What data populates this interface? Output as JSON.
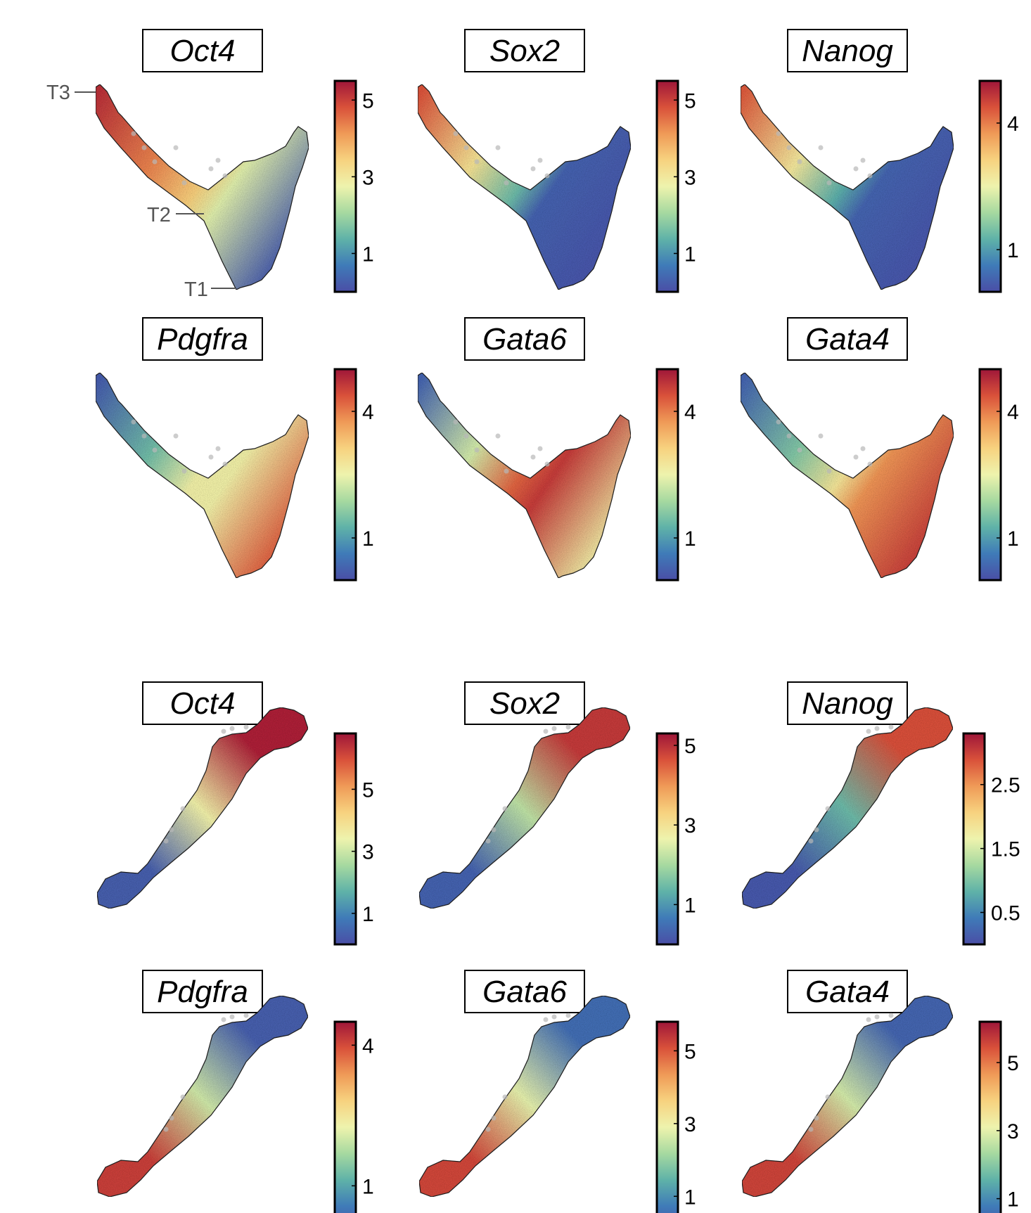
{
  "colorscale": [
    "#4a4ea6",
    "#3f7bb8",
    "#5fb2a8",
    "#a6d9a0",
    "#eef3ad",
    "#f7d27f",
    "#ef9a57",
    "#d9513a",
    "#9e1639"
  ],
  "chart_data": {
    "type": "scatter",
    "plot_kind": "feature-plot",
    "panels": [
      {
        "gene": "Oct4",
        "dataset": "trajectory-y",
        "ticks": [
          "5",
          "3",
          "1"
        ],
        "tick_values": [
          5,
          3,
          1
        ],
        "range": [
          0,
          5.5
        ],
        "expression_profile": {
          "branch": 5.2,
          "junction": 3.5,
          "left_arm": 2.6,
          "right_arm": 0.2
        }
      },
      {
        "gene": "Sox2",
        "dataset": "trajectory-y",
        "ticks": [
          "5",
          "3",
          "1"
        ],
        "tick_values": [
          5,
          3,
          1
        ],
        "range": [
          0,
          5.5
        ],
        "expression_profile": {
          "branch": 4.8,
          "junction": 1.5,
          "left_arm": 0.3,
          "right_arm": 0.1
        }
      },
      {
        "gene": "Nanog",
        "dataset": "trajectory-y",
        "ticks": [
          "4",
          "1"
        ],
        "tick_values": [
          4,
          1
        ],
        "range": [
          0,
          5
        ],
        "expression_profile": {
          "branch": 4.3,
          "junction": 1.2,
          "left_arm": 0.3,
          "right_arm": 0.1
        }
      },
      {
        "gene": "Pdgfra",
        "dataset": "trajectory-y",
        "ticks": [
          "4",
          "1"
        ],
        "tick_values": [
          4,
          1
        ],
        "range": [
          0,
          5
        ],
        "expression_profile": {
          "branch": 0.2,
          "junction": 2.6,
          "left_arm": 2.6,
          "right_arm": 4.3
        }
      },
      {
        "gene": "Gata6",
        "dataset": "trajectory-y",
        "ticks": [
          "4",
          "1"
        ],
        "tick_values": [
          4,
          1
        ],
        "range": [
          0,
          5
        ],
        "expression_profile": {
          "branch": 0.3,
          "junction": 4.2,
          "left_arm": 4.6,
          "right_arm": 2.6
        }
      },
      {
        "gene": "Gata4",
        "dataset": "trajectory-y",
        "ticks": [
          "4",
          "1"
        ],
        "tick_values": [
          4,
          1
        ],
        "range": [
          0,
          5
        ],
        "expression_profile": {
          "branch": 0.3,
          "junction": 2.8,
          "left_arm": 3.8,
          "right_arm": 4.6
        }
      },
      {
        "gene": "Oct4",
        "dataset": "trajectory-diagonal",
        "ticks": [
          "5",
          "3",
          "1"
        ],
        "tick_values": [
          5,
          3,
          1
        ],
        "range": [
          0,
          6.8
        ],
        "expression_profile": {
          "bottom_left": 0.3,
          "middle": 3.5,
          "top_right": 6.6
        }
      },
      {
        "gene": "Sox2",
        "dataset": "trajectory-diagonal",
        "ticks": [
          "5",
          "3",
          "1"
        ],
        "tick_values": [
          5,
          3,
          1
        ],
        "range": [
          0,
          5.3
        ],
        "expression_profile": {
          "bottom_left": 0.3,
          "middle": 2.2,
          "top_right": 4.9
        }
      },
      {
        "gene": "Nanog",
        "dataset": "trajectory-diagonal",
        "ticks": [
          "2.5",
          "1.5",
          "0.5"
        ],
        "tick_values": [
          2.5,
          1.5,
          0.5
        ],
        "range": [
          0,
          3.3
        ],
        "expression_profile": {
          "bottom_left": 0.1,
          "middle": 0.9,
          "top_right": 2.9
        }
      },
      {
        "gene": "Pdgfra",
        "dataset": "trajectory-diagonal",
        "ticks": [
          "4",
          "1"
        ],
        "tick_values": [
          4,
          1
        ],
        "range": [
          0,
          4.5
        ],
        "expression_profile": {
          "bottom_left": 4.1,
          "middle": 2.0,
          "top_right": 0.2
        }
      },
      {
        "gene": "Gata6",
        "dataset": "trajectory-diagonal",
        "ticks": [
          "5",
          "3",
          "1"
        ],
        "tick_values": [
          5,
          3,
          1
        ],
        "range": [
          0,
          5.8
        ],
        "expression_profile": {
          "bottom_left": 5.2,
          "middle": 2.8,
          "top_right": 0.5
        }
      },
      {
        "gene": "Gata4",
        "dataset": "trajectory-diagonal",
        "ticks": [
          "5",
          "3",
          "1"
        ],
        "tick_values": [
          5,
          3,
          1
        ],
        "range": [
          0,
          6.2
        ],
        "expression_profile": {
          "bottom_left": 5.6,
          "middle": 2.8,
          "top_right": 0.4
        }
      }
    ],
    "annotations": [
      "T3",
      "T2",
      "T1"
    ]
  }
}
